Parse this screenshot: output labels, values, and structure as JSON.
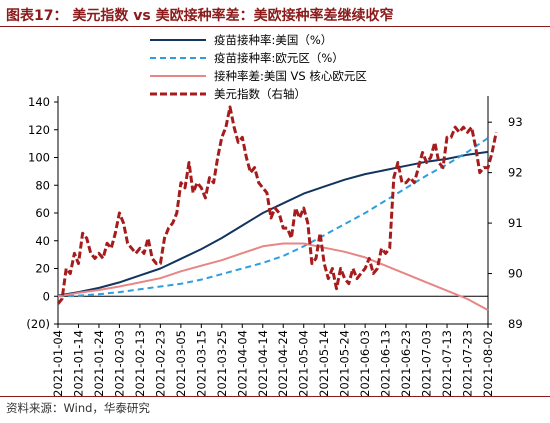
{
  "title": "图表17： 美元指数 vs 美欧接种率差：美欧接种率差继续收窄",
  "source": "资料来源：Wind，华泰研究",
  "colors": {
    "us_vacc": "#12345f",
    "eu_vacc": "#2e9ee0",
    "diff": "#e88585",
    "dxy": "#a61c1c",
    "axis": "#000000",
    "title": "#8b1a1a"
  },
  "chart_data": {
    "type": "line",
    "x_axis": {
      "type": "date",
      "range": [
        "2021-01-04",
        "2021-08-02"
      ],
      "tick_labels": [
        "2021-01-04",
        "2021-01-14",
        "2021-01-24",
        "2021-02-03",
        "2021-02-13",
        "2021-02-23",
        "2021-03-05",
        "2021-03-15",
        "2021-03-25",
        "2021-04-04",
        "2021-04-14",
        "2021-04-24",
        "2021-05-04",
        "2021-05-14",
        "2021-05-24",
        "2021-06-03",
        "2021-06-13",
        "2021-06-23",
        "2021-07-03",
        "2021-07-13",
        "2021-07-23",
        "2021-08-02"
      ]
    },
    "y_left": {
      "range": [
        -20,
        140
      ],
      "ticks": [
        -20,
        0,
        20,
        40,
        60,
        80,
        100,
        120,
        140
      ],
      "tick_labels": [
        "(20)",
        "0",
        "20",
        "40",
        "60",
        "80",
        "100",
        "120",
        "140"
      ]
    },
    "y_right": {
      "range": [
        89,
        93.4
      ],
      "ticks": [
        89,
        90,
        91,
        92,
        93
      ],
      "tick_labels": [
        "89",
        "90",
        "91",
        "92",
        "93"
      ]
    },
    "grid": false,
    "legend_position": "top-center",
    "series": [
      {
        "name": "疫苗接种率:美国（%）",
        "axis": "left",
        "style": "solid",
        "points": [
          [
            "2021-01-04",
            0.5
          ],
          [
            "2021-01-14",
            3
          ],
          [
            "2021-01-24",
            6
          ],
          [
            "2021-02-03",
            10
          ],
          [
            "2021-02-13",
            15
          ],
          [
            "2021-02-23",
            20
          ],
          [
            "2021-03-05",
            27
          ],
          [
            "2021-03-15",
            34
          ],
          [
            "2021-03-25",
            42
          ],
          [
            "2021-04-04",
            51
          ],
          [
            "2021-04-14",
            60
          ],
          [
            "2021-04-24",
            67
          ],
          [
            "2021-05-04",
            74
          ],
          [
            "2021-05-14",
            79
          ],
          [
            "2021-05-24",
            84
          ],
          [
            "2021-06-03",
            88
          ],
          [
            "2021-06-13",
            91
          ],
          [
            "2021-06-23",
            94
          ],
          [
            "2021-07-03",
            97
          ],
          [
            "2021-07-13",
            99
          ],
          [
            "2021-07-23",
            102
          ],
          [
            "2021-08-02",
            104
          ]
        ]
      },
      {
        "name": "疫苗接种率:欧元区（%）",
        "axis": "left",
        "style": "dashed",
        "points": [
          [
            "2021-01-04",
            0
          ],
          [
            "2021-01-14",
            0.5
          ],
          [
            "2021-01-24",
            1.5
          ],
          [
            "2021-02-03",
            3
          ],
          [
            "2021-02-13",
            5
          ],
          [
            "2021-02-23",
            7
          ],
          [
            "2021-03-05",
            9
          ],
          [
            "2021-03-15",
            12
          ],
          [
            "2021-03-25",
            16
          ],
          [
            "2021-04-04",
            20
          ],
          [
            "2021-04-14",
            24
          ],
          [
            "2021-04-24",
            29
          ],
          [
            "2021-05-04",
            36
          ],
          [
            "2021-05-14",
            44
          ],
          [
            "2021-05-24",
            52
          ],
          [
            "2021-06-03",
            60
          ],
          [
            "2021-06-13",
            69
          ],
          [
            "2021-06-23",
            78
          ],
          [
            "2021-07-03",
            87
          ],
          [
            "2021-07-13",
            95
          ],
          [
            "2021-07-23",
            104
          ],
          [
            "2021-08-02",
            114
          ]
        ]
      },
      {
        "name": "接种率差:美国 VS 核心欧元区",
        "axis": "left",
        "style": "solid",
        "points": [
          [
            "2021-01-04",
            0
          ],
          [
            "2021-01-14",
            2.5
          ],
          [
            "2021-01-24",
            4.5
          ],
          [
            "2021-02-03",
            7
          ],
          [
            "2021-02-13",
            10
          ],
          [
            "2021-02-23",
            13
          ],
          [
            "2021-03-05",
            18
          ],
          [
            "2021-03-15",
            22
          ],
          [
            "2021-03-25",
            26
          ],
          [
            "2021-04-04",
            31
          ],
          [
            "2021-04-14",
            36
          ],
          [
            "2021-04-24",
            38
          ],
          [
            "2021-05-04",
            38
          ],
          [
            "2021-05-14",
            35
          ],
          [
            "2021-05-24",
            32
          ],
          [
            "2021-06-03",
            28
          ],
          [
            "2021-06-13",
            22
          ],
          [
            "2021-06-23",
            16
          ],
          [
            "2021-07-03",
            10
          ],
          [
            "2021-07-13",
            4
          ],
          [
            "2021-07-23",
            -2
          ],
          [
            "2021-08-02",
            -10
          ]
        ]
      },
      {
        "name": "美元指数（右轴）",
        "axis": "right",
        "style": "dashed-thick",
        "points": [
          [
            "2021-01-04",
            89.4
          ],
          [
            "2021-01-06",
            89.5
          ],
          [
            "2021-01-08",
            90.1
          ],
          [
            "2021-01-10",
            90.0
          ],
          [
            "2021-01-12",
            90.4
          ],
          [
            "2021-01-14",
            90.2
          ],
          [
            "2021-01-16",
            90.8
          ],
          [
            "2021-01-18",
            90.7
          ],
          [
            "2021-01-20",
            90.4
          ],
          [
            "2021-01-22",
            90.3
          ],
          [
            "2021-01-24",
            90.4
          ],
          [
            "2021-01-26",
            90.3
          ],
          [
            "2021-01-28",
            90.6
          ],
          [
            "2021-01-30",
            90.5
          ],
          [
            "2021-02-01",
            90.8
          ],
          [
            "2021-02-03",
            91.2
          ],
          [
            "2021-02-05",
            91.0
          ],
          [
            "2021-02-07",
            90.6
          ],
          [
            "2021-02-09",
            90.5
          ],
          [
            "2021-02-11",
            90.4
          ],
          [
            "2021-02-13",
            90.5
          ],
          [
            "2021-02-15",
            90.4
          ],
          [
            "2021-02-17",
            90.7
          ],
          [
            "2021-02-19",
            90.3
          ],
          [
            "2021-02-21",
            90.2
          ],
          [
            "2021-02-23",
            90.2
          ],
          [
            "2021-02-25",
            90.7
          ],
          [
            "2021-02-27",
            90.9
          ],
          [
            "2021-03-01",
            91.0
          ],
          [
            "2021-03-03",
            91.2
          ],
          [
            "2021-03-05",
            91.8
          ],
          [
            "2021-03-07",
            91.7
          ],
          [
            "2021-03-09",
            92.2
          ],
          [
            "2021-03-11",
            91.6
          ],
          [
            "2021-03-13",
            91.8
          ],
          [
            "2021-03-15",
            91.7
          ],
          [
            "2021-03-17",
            91.5
          ],
          [
            "2021-03-19",
            91.9
          ],
          [
            "2021-03-21",
            91.8
          ],
          [
            "2021-03-23",
            92.3
          ],
          [
            "2021-03-25",
            92.7
          ],
          [
            "2021-03-27",
            92.9
          ],
          [
            "2021-03-29",
            93.3
          ],
          [
            "2021-03-31",
            92.9
          ],
          [
            "2021-04-02",
            92.6
          ],
          [
            "2021-04-04",
            92.7
          ],
          [
            "2021-04-06",
            92.3
          ],
          [
            "2021-04-08",
            92.0
          ],
          [
            "2021-04-10",
            92.1
          ],
          [
            "2021-04-12",
            91.8
          ],
          [
            "2021-04-14",
            91.7
          ],
          [
            "2021-04-16",
            91.6
          ],
          [
            "2021-04-18",
            91.1
          ],
          [
            "2021-04-20",
            91.3
          ],
          [
            "2021-04-22",
            91.2
          ],
          [
            "2021-04-24",
            90.9
          ],
          [
            "2021-04-26",
            90.9
          ],
          [
            "2021-04-28",
            90.7
          ],
          [
            "2021-04-30",
            91.3
          ],
          [
            "2021-05-02",
            91.1
          ],
          [
            "2021-05-04",
            91.3
          ],
          [
            "2021-05-06",
            91.0
          ],
          [
            "2021-05-08",
            90.2
          ],
          [
            "2021-05-10",
            90.3
          ],
          [
            "2021-05-12",
            90.8
          ],
          [
            "2021-05-14",
            90.2
          ],
          [
            "2021-05-16",
            89.9
          ],
          [
            "2021-05-18",
            90.1
          ],
          [
            "2021-05-20",
            89.7
          ],
          [
            "2021-05-22",
            90.1
          ],
          [
            "2021-05-24",
            89.9
          ],
          [
            "2021-05-26",
            89.8
          ],
          [
            "2021-05-28",
            90.1
          ],
          [
            "2021-05-30",
            89.9
          ],
          [
            "2021-06-01",
            90.0
          ],
          [
            "2021-06-03",
            90.1
          ],
          [
            "2021-06-05",
            90.3
          ],
          [
            "2021-06-07",
            90.0
          ],
          [
            "2021-06-09",
            90.1
          ],
          [
            "2021-06-11",
            90.5
          ],
          [
            "2021-06-13",
            90.4
          ],
          [
            "2021-06-15",
            90.5
          ],
          [
            "2021-06-17",
            91.9
          ],
          [
            "2021-06-19",
            92.2
          ],
          [
            "2021-06-21",
            91.8
          ],
          [
            "2021-06-23",
            91.8
          ],
          [
            "2021-06-25",
            91.9
          ],
          [
            "2021-06-27",
            91.8
          ],
          [
            "2021-06-29",
            92.1
          ],
          [
            "2021-07-01",
            92.4
          ],
          [
            "2021-07-03",
            92.2
          ],
          [
            "2021-07-05",
            92.3
          ],
          [
            "2021-07-07",
            92.6
          ],
          [
            "2021-07-09",
            92.2
          ],
          [
            "2021-07-11",
            92.1
          ],
          [
            "2021-07-13",
            92.7
          ],
          [
            "2021-07-15",
            92.7
          ],
          [
            "2021-07-17",
            92.9
          ],
          [
            "2021-07-19",
            92.8
          ],
          [
            "2021-07-21",
            92.9
          ],
          [
            "2021-07-23",
            92.8
          ],
          [
            "2021-07-25",
            92.9
          ],
          [
            "2021-07-27",
            92.5
          ],
          [
            "2021-07-29",
            92.0
          ],
          [
            "2021-07-31",
            92.1
          ],
          [
            "2021-08-02",
            92.1
          ],
          [
            "2021-08-04",
            92.4
          ],
          [
            "2021-08-06",
            92.8
          ]
        ]
      }
    ]
  }
}
